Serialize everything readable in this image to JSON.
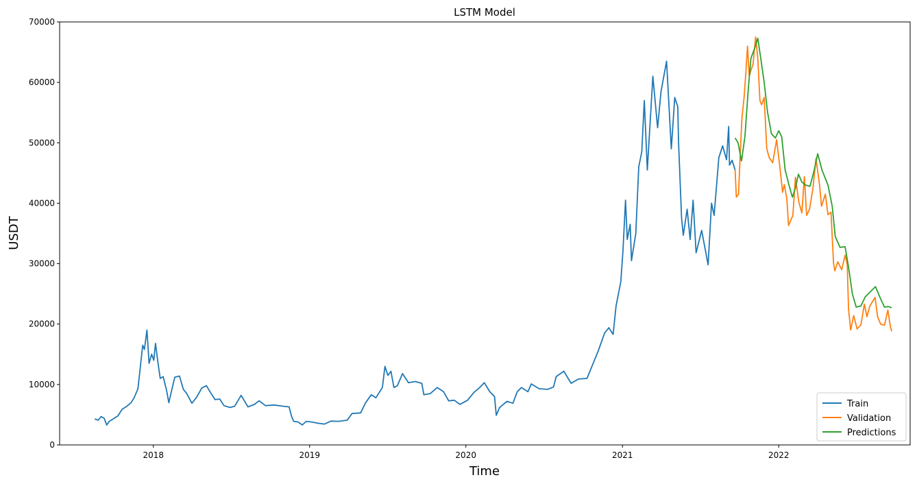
{
  "chart_data": {
    "type": "line",
    "title": "LSTM Model",
    "xlabel": "Time",
    "ylabel": "USDT",
    "xlim": [
      "2017-05-27",
      "2022-11-04"
    ],
    "ylim": [
      0,
      70000
    ],
    "x_ticks": [
      "2018",
      "2019",
      "2020",
      "2021",
      "2022"
    ],
    "y_ticks": [
      0,
      10000,
      20000,
      30000,
      40000,
      50000,
      60000,
      70000
    ],
    "grid": false,
    "legend_position": "lower-right",
    "series": [
      {
        "name": "Train",
        "color": "#1f77b4",
        "points": [
          [
            "2017-08-17",
            4300
          ],
          [
            "2017-08-25",
            4100
          ],
          [
            "2017-09-01",
            4700
          ],
          [
            "2017-09-08",
            4400
          ],
          [
            "2017-09-14",
            3300
          ],
          [
            "2017-09-20",
            3900
          ],
          [
            "2017-09-29",
            4300
          ],
          [
            "2017-10-10",
            4800
          ],
          [
            "2017-10-20",
            5900
          ],
          [
            "2017-10-31",
            6400
          ],
          [
            "2017-11-10",
            7000
          ],
          [
            "2017-11-17",
            7800
          ],
          [
            "2017-11-26",
            9300
          ],
          [
            "2017-12-07",
            16500
          ],
          [
            "2017-12-11",
            15800
          ],
          [
            "2017-12-17",
            19000
          ],
          [
            "2017-12-22",
            13500
          ],
          [
            "2017-12-28",
            15000
          ],
          [
            "2018-01-02",
            14000
          ],
          [
            "2018-01-06",
            16800
          ],
          [
            "2018-01-12",
            13500
          ],
          [
            "2018-01-17",
            11000
          ],
          [
            "2018-01-24",
            11300
          ],
          [
            "2018-02-01",
            9000
          ],
          [
            "2018-02-06",
            7000
          ],
          [
            "2018-02-12",
            8800
          ],
          [
            "2018-02-20",
            11200
          ],
          [
            "2018-03-03",
            11400
          ],
          [
            "2018-03-12",
            9200
          ],
          [
            "2018-03-20",
            8500
          ],
          [
            "2018-04-01",
            6900
          ],
          [
            "2018-04-12",
            7900
          ],
          [
            "2018-04-24",
            9400
          ],
          [
            "2018-05-05",
            9800
          ],
          [
            "2018-05-15",
            8600
          ],
          [
            "2018-05-25",
            7500
          ],
          [
            "2018-06-05",
            7600
          ],
          [
            "2018-06-15",
            6500
          ],
          [
            "2018-06-29",
            6200
          ],
          [
            "2018-07-10",
            6400
          ],
          [
            "2018-07-25",
            8200
          ],
          [
            "2018-08-10",
            6300
          ],
          [
            "2018-08-25",
            6700
          ],
          [
            "2018-09-05",
            7300
          ],
          [
            "2018-09-20",
            6500
          ],
          [
            "2018-10-10",
            6600
          ],
          [
            "2018-11-01",
            6400
          ],
          [
            "2018-11-14",
            6300
          ],
          [
            "2018-11-20",
            4700
          ],
          [
            "2018-11-25",
            3900
          ],
          [
            "2018-12-05",
            3800
          ],
          [
            "2018-12-15",
            3300
          ],
          [
            "2018-12-24",
            3900
          ],
          [
            "2019-01-05",
            3800
          ],
          [
            "2019-01-20",
            3600
          ],
          [
            "2019-02-05",
            3450
          ],
          [
            "2019-02-20",
            3950
          ],
          [
            "2019-03-10",
            3900
          ],
          [
            "2019-03-30",
            4100
          ],
          [
            "2019-04-10",
            5200
          ],
          [
            "2019-04-30",
            5300
          ],
          [
            "2019-05-12",
            7000
          ],
          [
            "2019-05-25",
            8300
          ],
          [
            "2019-06-05",
            7800
          ],
          [
            "2019-06-20",
            9500
          ],
          [
            "2019-06-26",
            13000
          ],
          [
            "2019-07-03",
            11500
          ],
          [
            "2019-07-10",
            12200
          ],
          [
            "2019-07-17",
            9500
          ],
          [
            "2019-07-25",
            9800
          ],
          [
            "2019-08-06",
            11800
          ],
          [
            "2019-08-20",
            10300
          ],
          [
            "2019-09-05",
            10500
          ],
          [
            "2019-09-20",
            10200
          ],
          [
            "2019-09-25",
            8300
          ],
          [
            "2019-10-10",
            8500
          ],
          [
            "2019-10-26",
            9500
          ],
          [
            "2019-11-10",
            8800
          ],
          [
            "2019-11-22",
            7300
          ],
          [
            "2019-12-05",
            7400
          ],
          [
            "2019-12-18",
            6700
          ],
          [
            "2020-01-05",
            7400
          ],
          [
            "2020-01-20",
            8700
          ],
          [
            "2020-02-01",
            9400
          ],
          [
            "2020-02-13",
            10300
          ],
          [
            "2020-02-26",
            8800
          ],
          [
            "2020-03-08",
            8000
          ],
          [
            "2020-03-12",
            4900
          ],
          [
            "2020-03-20",
            6200
          ],
          [
            "2020-04-06",
            7200
          ],
          [
            "2020-04-20",
            6900
          ],
          [
            "2020-04-30",
            8800
          ],
          [
            "2020-05-10",
            9500
          ],
          [
            "2020-05-25",
            8800
          ],
          [
            "2020-06-02",
            10100
          ],
          [
            "2020-06-20",
            9300
          ],
          [
            "2020-07-10",
            9200
          ],
          [
            "2020-07-24",
            9600
          ],
          [
            "2020-07-30",
            11300
          ],
          [
            "2020-08-17",
            12200
          ],
          [
            "2020-09-03",
            10200
          ],
          [
            "2020-09-20",
            10900
          ],
          [
            "2020-10-10",
            11000
          ],
          [
            "2020-10-21",
            12900
          ],
          [
            "2020-11-05",
            15500
          ],
          [
            "2020-11-20",
            18500
          ],
          [
            "2020-11-30",
            19400
          ],
          [
            "2020-12-10",
            18300
          ],
          [
            "2020-12-17",
            23000
          ],
          [
            "2020-12-28",
            27000
          ],
          [
            "2021-01-02",
            32000
          ],
          [
            "2021-01-08",
            40500
          ],
          [
            "2021-01-12",
            34000
          ],
          [
            "2021-01-19",
            36500
          ],
          [
            "2021-01-22",
            30500
          ],
          [
            "2021-02-01",
            35000
          ],
          [
            "2021-02-08",
            46000
          ],
          [
            "2021-02-15",
            48500
          ],
          [
            "2021-02-21",
            57000
          ],
          [
            "2021-02-28",
            45500
          ],
          [
            "2021-03-13",
            61000
          ],
          [
            "2021-03-24",
            52500
          ],
          [
            "2021-04-01",
            58500
          ],
          [
            "2021-04-14",
            63500
          ],
          [
            "2021-04-25",
            49000
          ],
          [
            "2021-05-03",
            57500
          ],
          [
            "2021-05-10",
            56000
          ],
          [
            "2021-05-12",
            50000
          ],
          [
            "2021-05-19",
            37500
          ],
          [
            "2021-05-23",
            34700
          ],
          [
            "2021-06-01",
            39000
          ],
          [
            "2021-06-08",
            34000
          ],
          [
            "2021-06-15",
            40500
          ],
          [
            "2021-06-22",
            31800
          ],
          [
            "2021-07-05",
            35500
          ],
          [
            "2021-07-20",
            29800
          ],
          [
            "2021-07-28",
            40000
          ],
          [
            "2021-08-03",
            38000
          ],
          [
            "2021-08-14",
            47500
          ],
          [
            "2021-08-23",
            49500
          ],
          [
            "2021-09-01",
            47200
          ],
          [
            "2021-09-06",
            52700
          ],
          [
            "2021-09-08",
            46300
          ],
          [
            "2021-09-14",
            47100
          ],
          [
            "2021-09-21",
            45500
          ]
        ]
      },
      {
        "name": "Validation",
        "color": "#ff7f0e",
        "points": [
          [
            "2021-09-21",
            45500
          ],
          [
            "2021-09-24",
            41000
          ],
          [
            "2021-09-29",
            41500
          ],
          [
            "2021-10-03",
            48000
          ],
          [
            "2021-10-07",
            54000
          ],
          [
            "2021-10-12",
            57500
          ],
          [
            "2021-10-16",
            61500
          ],
          [
            "2021-10-20",
            66000
          ],
          [
            "2021-10-24",
            61000
          ],
          [
            "2021-10-28",
            62000
          ],
          [
            "2021-11-02",
            63000
          ],
          [
            "2021-11-08",
            67500
          ],
          [
            "2021-11-13",
            64000
          ],
          [
            "2021-11-18",
            57000
          ],
          [
            "2021-11-22",
            56300
          ],
          [
            "2021-11-28",
            57500
          ],
          [
            "2021-12-04",
            49000
          ],
          [
            "2021-12-10",
            47500
          ],
          [
            "2021-12-18",
            46700
          ],
          [
            "2021-12-27",
            50500
          ],
          [
            "2022-01-03",
            46400
          ],
          [
            "2022-01-10",
            41800
          ],
          [
            "2022-01-14",
            43100
          ],
          [
            "2022-01-20",
            40700
          ],
          [
            "2022-01-24",
            36300
          ],
          [
            "2022-02-03",
            38000
          ],
          [
            "2022-02-09",
            44300
          ],
          [
            "2022-02-17",
            40200
          ],
          [
            "2022-02-24",
            38400
          ],
          [
            "2022-03-02",
            44400
          ],
          [
            "2022-03-07",
            38000
          ],
          [
            "2022-03-14",
            39000
          ],
          [
            "2022-03-22",
            42500
          ],
          [
            "2022-03-29",
            47400
          ],
          [
            "2022-04-06",
            43200
          ],
          [
            "2022-04-11",
            39500
          ],
          [
            "2022-04-20",
            41500
          ],
          [
            "2022-04-26",
            38100
          ],
          [
            "2022-05-03",
            38500
          ],
          [
            "2022-05-09",
            30100
          ],
          [
            "2022-05-12",
            28800
          ],
          [
            "2022-05-19",
            30300
          ],
          [
            "2022-05-28",
            29000
          ],
          [
            "2022-06-05",
            31400
          ],
          [
            "2022-06-10",
            29900
          ],
          [
            "2022-06-13",
            22500
          ],
          [
            "2022-06-18",
            19000
          ],
          [
            "2022-06-25",
            21400
          ],
          [
            "2022-07-03",
            19200
          ],
          [
            "2022-07-12",
            19900
          ],
          [
            "2022-07-20",
            23300
          ],
          [
            "2022-07-26",
            21200
          ],
          [
            "2022-08-02",
            23000
          ],
          [
            "2022-08-14",
            24400
          ],
          [
            "2022-08-20",
            21200
          ],
          [
            "2022-08-27",
            20000
          ],
          [
            "2022-09-05",
            19800
          ],
          [
            "2022-09-13",
            22300
          ],
          [
            "2022-09-19",
            19500
          ],
          [
            "2022-09-22",
            18800
          ]
        ]
      },
      {
        "name": "Predictions",
        "color": "#2ca02c",
        "points": [
          [
            "2021-09-21",
            50800
          ],
          [
            "2021-09-28",
            50000
          ],
          [
            "2021-10-06",
            47000
          ],
          [
            "2021-10-14",
            51000
          ],
          [
            "2021-10-22",
            59000
          ],
          [
            "2021-10-28",
            64000
          ],
          [
            "2021-11-05",
            65500
          ],
          [
            "2021-11-13",
            67300
          ],
          [
            "2021-11-20",
            64000
          ],
          [
            "2021-11-28",
            60000
          ],
          [
            "2021-12-06",
            55000
          ],
          [
            "2021-12-15",
            51500
          ],
          [
            "2021-12-24",
            50800
          ],
          [
            "2022-01-01",
            52000
          ],
          [
            "2022-01-08",
            51000
          ],
          [
            "2022-01-16",
            45500
          ],
          [
            "2022-01-25",
            43000
          ],
          [
            "2022-02-02",
            41000
          ],
          [
            "2022-02-09",
            42500
          ],
          [
            "2022-02-16",
            44800
          ],
          [
            "2022-02-24",
            43500
          ],
          [
            "2022-03-05",
            43000
          ],
          [
            "2022-03-15",
            42800
          ],
          [
            "2022-03-25",
            45500
          ],
          [
            "2022-04-02",
            48200
          ],
          [
            "2022-04-12",
            45500
          ],
          [
            "2022-04-26",
            43000
          ],
          [
            "2022-05-06",
            39500
          ],
          [
            "2022-05-13",
            34500
          ],
          [
            "2022-05-24",
            32700
          ],
          [
            "2022-06-05",
            32800
          ],
          [
            "2022-06-14",
            29000
          ],
          [
            "2022-06-22",
            25000
          ],
          [
            "2022-07-01",
            22800
          ],
          [
            "2022-07-12",
            23000
          ],
          [
            "2022-07-22",
            24500
          ],
          [
            "2022-08-05",
            25500
          ],
          [
            "2022-08-15",
            26200
          ],
          [
            "2022-08-25",
            24500
          ],
          [
            "2022-09-05",
            22800
          ],
          [
            "2022-09-14",
            22900
          ],
          [
            "2022-09-22",
            22700
          ]
        ]
      }
    ]
  }
}
